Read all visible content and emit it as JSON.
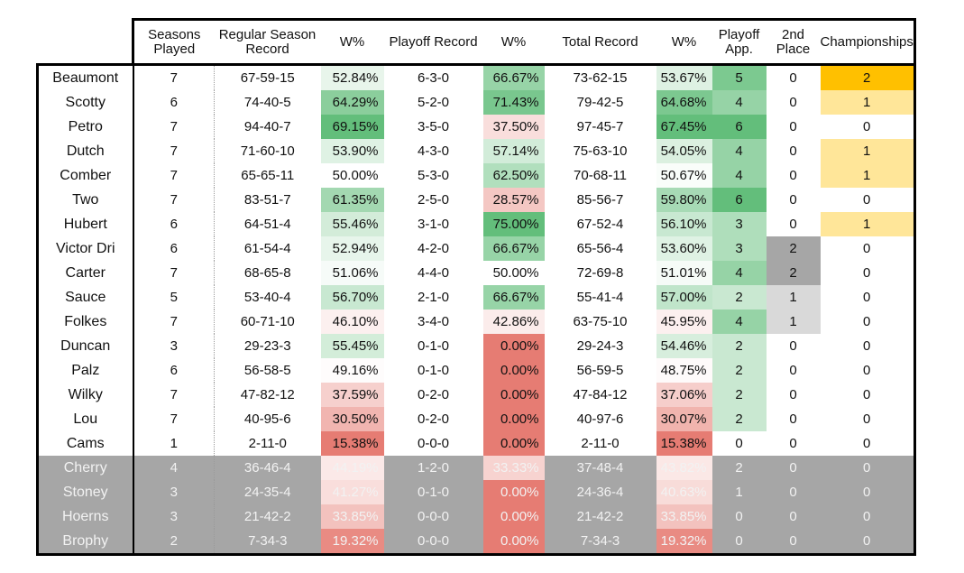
{
  "headers": {
    "seasons_played": "Seasons\nPlayed",
    "regular_season_record": "Regular Season\nRecord",
    "w_pct": "W%",
    "playoff_record": "Playoff Record",
    "total_record": "Total Record",
    "playoff_app": "Playoff\nApp.",
    "second_place": "2nd\nPlace",
    "championships": "Championships"
  },
  "colors": {
    "green_strong": "#63be7b",
    "red_strong": "#e67c73",
    "white": "#ffffff",
    "gold": "#ffc000",
    "gold_light": "#ffe699",
    "gray_dark": "#a6a6a6",
    "gray_mid": "#a6a6a6",
    "gray_light": "#d9d9d9",
    "inactive_text": "#f2f2f2",
    "inactive_bg": "#a6a6a6"
  },
  "rows": [
    {
      "name": "Beaumont",
      "seasons": "7",
      "reg": "67-59-15",
      "reg_w": "52.84%",
      "reg_w_val": 52.84,
      "po": "6-3-0",
      "po_w": "66.67%",
      "po_w_val": 66.67,
      "tot": "73-62-15",
      "tot_w": "53.67%",
      "tot_w_val": 53.67,
      "papp": "5",
      "papp_val": 5,
      "second": "0",
      "second_val": 0,
      "champ": "2",
      "champ_val": 2,
      "inactive": false
    },
    {
      "name": "Scotty",
      "seasons": "6",
      "reg": "74-40-5",
      "reg_w": "64.29%",
      "reg_w_val": 64.29,
      "po": "5-2-0",
      "po_w": "71.43%",
      "po_w_val": 71.43,
      "tot": "79-42-5",
      "tot_w": "64.68%",
      "tot_w_val": 64.68,
      "papp": "4",
      "papp_val": 4,
      "second": "0",
      "second_val": 0,
      "champ": "1",
      "champ_val": 1,
      "inactive": false
    },
    {
      "name": "Petro",
      "seasons": "7",
      "reg": "94-40-7",
      "reg_w": "69.15%",
      "reg_w_val": 69.15,
      "po": "3-5-0",
      "po_w": "37.50%",
      "po_w_val": 37.5,
      "tot": "97-45-7",
      "tot_w": "67.45%",
      "tot_w_val": 67.45,
      "papp": "6",
      "papp_val": 6,
      "second": "0",
      "second_val": 0,
      "champ": "0",
      "champ_val": 0,
      "inactive": false
    },
    {
      "name": "Dutch",
      "seasons": "7",
      "reg": "71-60-10",
      "reg_w": "53.90%",
      "reg_w_val": 53.9,
      "po": "4-3-0",
      "po_w": "57.14%",
      "po_w_val": 57.14,
      "tot": "75-63-10",
      "tot_w": "54.05%",
      "tot_w_val": 54.05,
      "papp": "4",
      "papp_val": 4,
      "second": "0",
      "second_val": 0,
      "champ": "1",
      "champ_val": 1,
      "inactive": false
    },
    {
      "name": "Comber",
      "seasons": "7",
      "reg": "65-65-11",
      "reg_w": "50.00%",
      "reg_w_val": 50.0,
      "po": "5-3-0",
      "po_w": "62.50%",
      "po_w_val": 62.5,
      "tot": "70-68-11",
      "tot_w": "50.67%",
      "tot_w_val": 50.67,
      "papp": "4",
      "papp_val": 4,
      "second": "0",
      "second_val": 0,
      "champ": "1",
      "champ_val": 1,
      "inactive": false
    },
    {
      "name": "Two",
      "seasons": "7",
      "reg": "83-51-7",
      "reg_w": "61.35%",
      "reg_w_val": 61.35,
      "po": "2-5-0",
      "po_w": "28.57%",
      "po_w_val": 28.57,
      "tot": "85-56-7",
      "tot_w": "59.80%",
      "tot_w_val": 59.8,
      "papp": "6",
      "papp_val": 6,
      "second": "0",
      "second_val": 0,
      "champ": "0",
      "champ_val": 0,
      "inactive": false
    },
    {
      "name": "Hubert",
      "seasons": "6",
      "reg": "64-51-4",
      "reg_w": "55.46%",
      "reg_w_val": 55.46,
      "po": "3-1-0",
      "po_w": "75.00%",
      "po_w_val": 75.0,
      "tot": "67-52-4",
      "tot_w": "56.10%",
      "tot_w_val": 56.1,
      "papp": "3",
      "papp_val": 3,
      "second": "0",
      "second_val": 0,
      "champ": "1",
      "champ_val": 1,
      "inactive": false
    },
    {
      "name": "Victor Dri",
      "seasons": "6",
      "reg": "61-54-4",
      "reg_w": "52.94%",
      "reg_w_val": 52.94,
      "po": "4-2-0",
      "po_w": "66.67%",
      "po_w_val": 66.67,
      "tot": "65-56-4",
      "tot_w": "53.60%",
      "tot_w_val": 53.6,
      "papp": "3",
      "papp_val": 3,
      "second": "2",
      "second_val": 2,
      "champ": "0",
      "champ_val": 0,
      "inactive": false
    },
    {
      "name": "Carter",
      "seasons": "7",
      "reg": "68-65-8",
      "reg_w": "51.06%",
      "reg_w_val": 51.06,
      "po": "4-4-0",
      "po_w": "50.00%",
      "po_w_val": 50.0,
      "tot": "72-69-8",
      "tot_w": "51.01%",
      "tot_w_val": 51.01,
      "papp": "4",
      "papp_val": 4,
      "second": "2",
      "second_val": 2,
      "champ": "0",
      "champ_val": 0,
      "inactive": false
    },
    {
      "name": "Sauce",
      "seasons": "5",
      "reg": "53-40-4",
      "reg_w": "56.70%",
      "reg_w_val": 56.7,
      "po": "2-1-0",
      "po_w": "66.67%",
      "po_w_val": 66.67,
      "tot": "55-41-4",
      "tot_w": "57.00%",
      "tot_w_val": 57.0,
      "papp": "2",
      "papp_val": 2,
      "second": "1",
      "second_val": 1,
      "champ": "0",
      "champ_val": 0,
      "inactive": false
    },
    {
      "name": "Folkes",
      "seasons": "7",
      "reg": "60-71-10",
      "reg_w": "46.10%",
      "reg_w_val": 46.1,
      "po": "3-4-0",
      "po_w": "42.86%",
      "po_w_val": 42.86,
      "tot": "63-75-10",
      "tot_w": "45.95%",
      "tot_w_val": 45.95,
      "papp": "4",
      "papp_val": 4,
      "second": "1",
      "second_val": 1,
      "champ": "0",
      "champ_val": 0,
      "inactive": false
    },
    {
      "name": "Duncan",
      "seasons": "3",
      "reg": "29-23-3",
      "reg_w": "55.45%",
      "reg_w_val": 55.45,
      "po": "0-1-0",
      "po_w": "0.00%",
      "po_w_val": 0.0,
      "tot": "29-24-3",
      "tot_w": "54.46%",
      "tot_w_val": 54.46,
      "papp": "2",
      "papp_val": 2,
      "second": "0",
      "second_val": 0,
      "champ": "0",
      "champ_val": 0,
      "inactive": false
    },
    {
      "name": "Palz",
      "seasons": "6",
      "reg": "56-58-5",
      "reg_w": "49.16%",
      "reg_w_val": 49.16,
      "po": "0-1-0",
      "po_w": "0.00%",
      "po_w_val": 0.0,
      "tot": "56-59-5",
      "tot_w": "48.75%",
      "tot_w_val": 48.75,
      "papp": "2",
      "papp_val": 2,
      "second": "0",
      "second_val": 0,
      "champ": "0",
      "champ_val": 0,
      "inactive": false
    },
    {
      "name": "Wilky",
      "seasons": "7",
      "reg": "47-82-12",
      "reg_w": "37.59%",
      "reg_w_val": 37.59,
      "po": "0-2-0",
      "po_w": "0.00%",
      "po_w_val": 0.0,
      "tot": "47-84-12",
      "tot_w": "37.06%",
      "tot_w_val": 37.06,
      "papp": "2",
      "papp_val": 2,
      "second": "0",
      "second_val": 0,
      "champ": "0",
      "champ_val": 0,
      "inactive": false
    },
    {
      "name": "Lou",
      "seasons": "7",
      "reg": "40-95-6",
      "reg_w": "30.50%",
      "reg_w_val": 30.5,
      "po": "0-2-0",
      "po_w": "0.00%",
      "po_w_val": 0.0,
      "tot": "40-97-6",
      "tot_w": "30.07%",
      "tot_w_val": 30.07,
      "papp": "2",
      "papp_val": 2,
      "second": "0",
      "second_val": 0,
      "champ": "0",
      "champ_val": 0,
      "inactive": false
    },
    {
      "name": "Cams",
      "seasons": "1",
      "reg": "2-11-0",
      "reg_w": "15.38%",
      "reg_w_val": 15.38,
      "po": "0-0-0",
      "po_w": "0.00%",
      "po_w_val": 0.0,
      "tot": "2-11-0",
      "tot_w": "15.38%",
      "tot_w_val": 15.38,
      "papp": "0",
      "papp_val": 0,
      "second": "0",
      "second_val": 0,
      "champ": "0",
      "champ_val": 0,
      "inactive": false
    },
    {
      "name": "Cherry",
      "seasons": "4",
      "reg": "36-46-4",
      "reg_w": "44.19%",
      "reg_w_val": 44.19,
      "po": "1-2-0",
      "po_w": "33.33%",
      "po_w_val": 33.33,
      "tot": "37-48-4",
      "tot_w": "43.82%",
      "tot_w_val": 43.82,
      "papp": "2",
      "papp_val": 2,
      "second": "0",
      "second_val": 0,
      "champ": "0",
      "champ_val": 0,
      "inactive": true
    },
    {
      "name": "Stoney",
      "seasons": "3",
      "reg": "24-35-4",
      "reg_w": "41.27%",
      "reg_w_val": 41.27,
      "po": "0-1-0",
      "po_w": "0.00%",
      "po_w_val": 0.0,
      "tot": "24-36-4",
      "tot_w": "40.63%",
      "tot_w_val": 40.63,
      "papp": "1",
      "papp_val": 1,
      "second": "0",
      "second_val": 0,
      "champ": "0",
      "champ_val": 0,
      "inactive": true
    },
    {
      "name": "Hoerns",
      "seasons": "3",
      "reg": "21-42-2",
      "reg_w": "33.85%",
      "reg_w_val": 33.85,
      "po": "0-0-0",
      "po_w": "0.00%",
      "po_w_val": 0.0,
      "tot": "21-42-2",
      "tot_w": "33.85%",
      "tot_w_val": 33.85,
      "papp": "0",
      "papp_val": 0,
      "second": "0",
      "second_val": 0,
      "champ": "0",
      "champ_val": 0,
      "inactive": true
    },
    {
      "name": "Brophy",
      "seasons": "2",
      "reg": "7-34-3",
      "reg_w": "19.32%",
      "reg_w_val": 19.32,
      "po": "0-0-0",
      "po_w": "0.00%",
      "po_w_val": 0.0,
      "tot": "7-34-3",
      "tot_w": "19.32%",
      "tot_w_val": 19.32,
      "papp": "0",
      "papp_val": 0,
      "second": "0",
      "second_val": 0,
      "champ": "0",
      "champ_val": 0,
      "inactive": true
    }
  ]
}
